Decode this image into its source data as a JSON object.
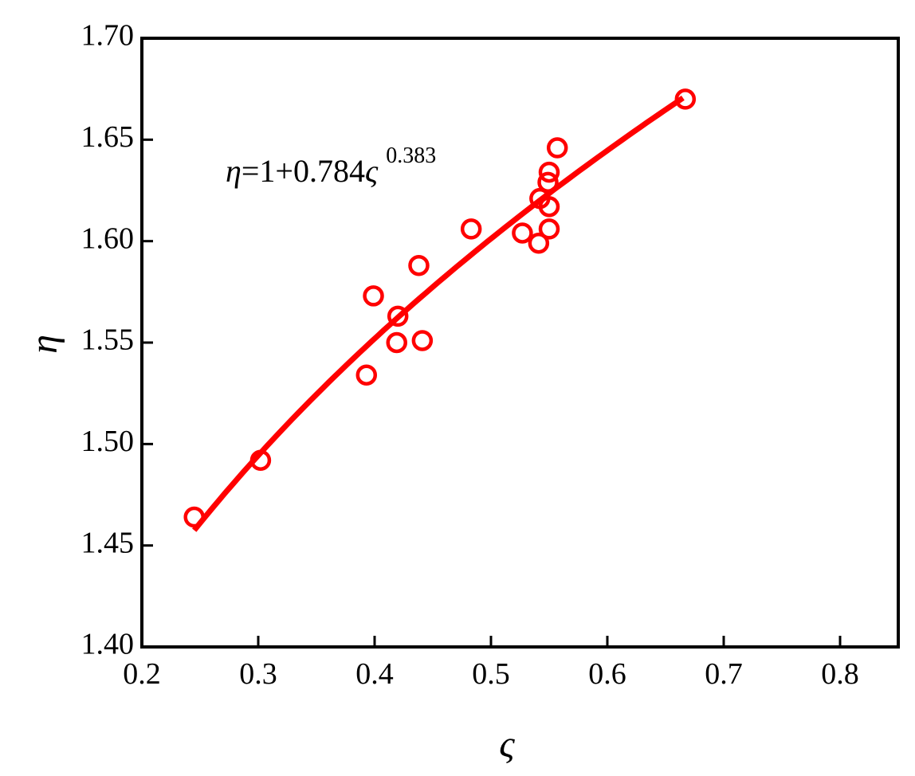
{
  "chart_data": {
    "type": "scatter",
    "xlabel": "ς",
    "ylabel": "η",
    "xlim": [
      0.2,
      0.85
    ],
    "ylim": [
      1.4,
      1.7
    ],
    "xticks": [
      "0.2",
      "0.3",
      "0.4",
      "0.5",
      "0.6",
      "0.7",
      "0.8"
    ],
    "yticks": [
      "1.40",
      "1.45",
      "1.50",
      "1.55",
      "1.60",
      "1.65",
      "1.70"
    ],
    "grid": false,
    "color": "#ff0000",
    "annotation": {
      "lhs": "η",
      "mid": "=1+0.784",
      "var": "ς",
      "exp": "0.383"
    },
    "fit": {
      "formula": "η=1+0.784ς^0.383",
      "a": 0.784,
      "b": 0.383,
      "x_range": [
        0.245,
        0.665
      ]
    },
    "points": [
      {
        "x": 0.245,
        "y": 1.464
      },
      {
        "x": 0.302,
        "y": 1.492
      },
      {
        "x": 0.393,
        "y": 1.534
      },
      {
        "x": 0.399,
        "y": 1.573
      },
      {
        "x": 0.419,
        "y": 1.55
      },
      {
        "x": 0.42,
        "y": 1.563
      },
      {
        "x": 0.438,
        "y": 1.588
      },
      {
        "x": 0.441,
        "y": 1.551
      },
      {
        "x": 0.483,
        "y": 1.606
      },
      {
        "x": 0.527,
        "y": 1.604
      },
      {
        "x": 0.541,
        "y": 1.599
      },
      {
        "x": 0.542,
        "y": 1.621
      },
      {
        "x": 0.549,
        "y": 1.629
      },
      {
        "x": 0.55,
        "y": 1.634
      },
      {
        "x": 0.55,
        "y": 1.617
      },
      {
        "x": 0.55,
        "y": 1.606
      },
      {
        "x": 0.557,
        "y": 1.646
      },
      {
        "x": 0.667,
        "y": 1.67
      }
    ]
  }
}
